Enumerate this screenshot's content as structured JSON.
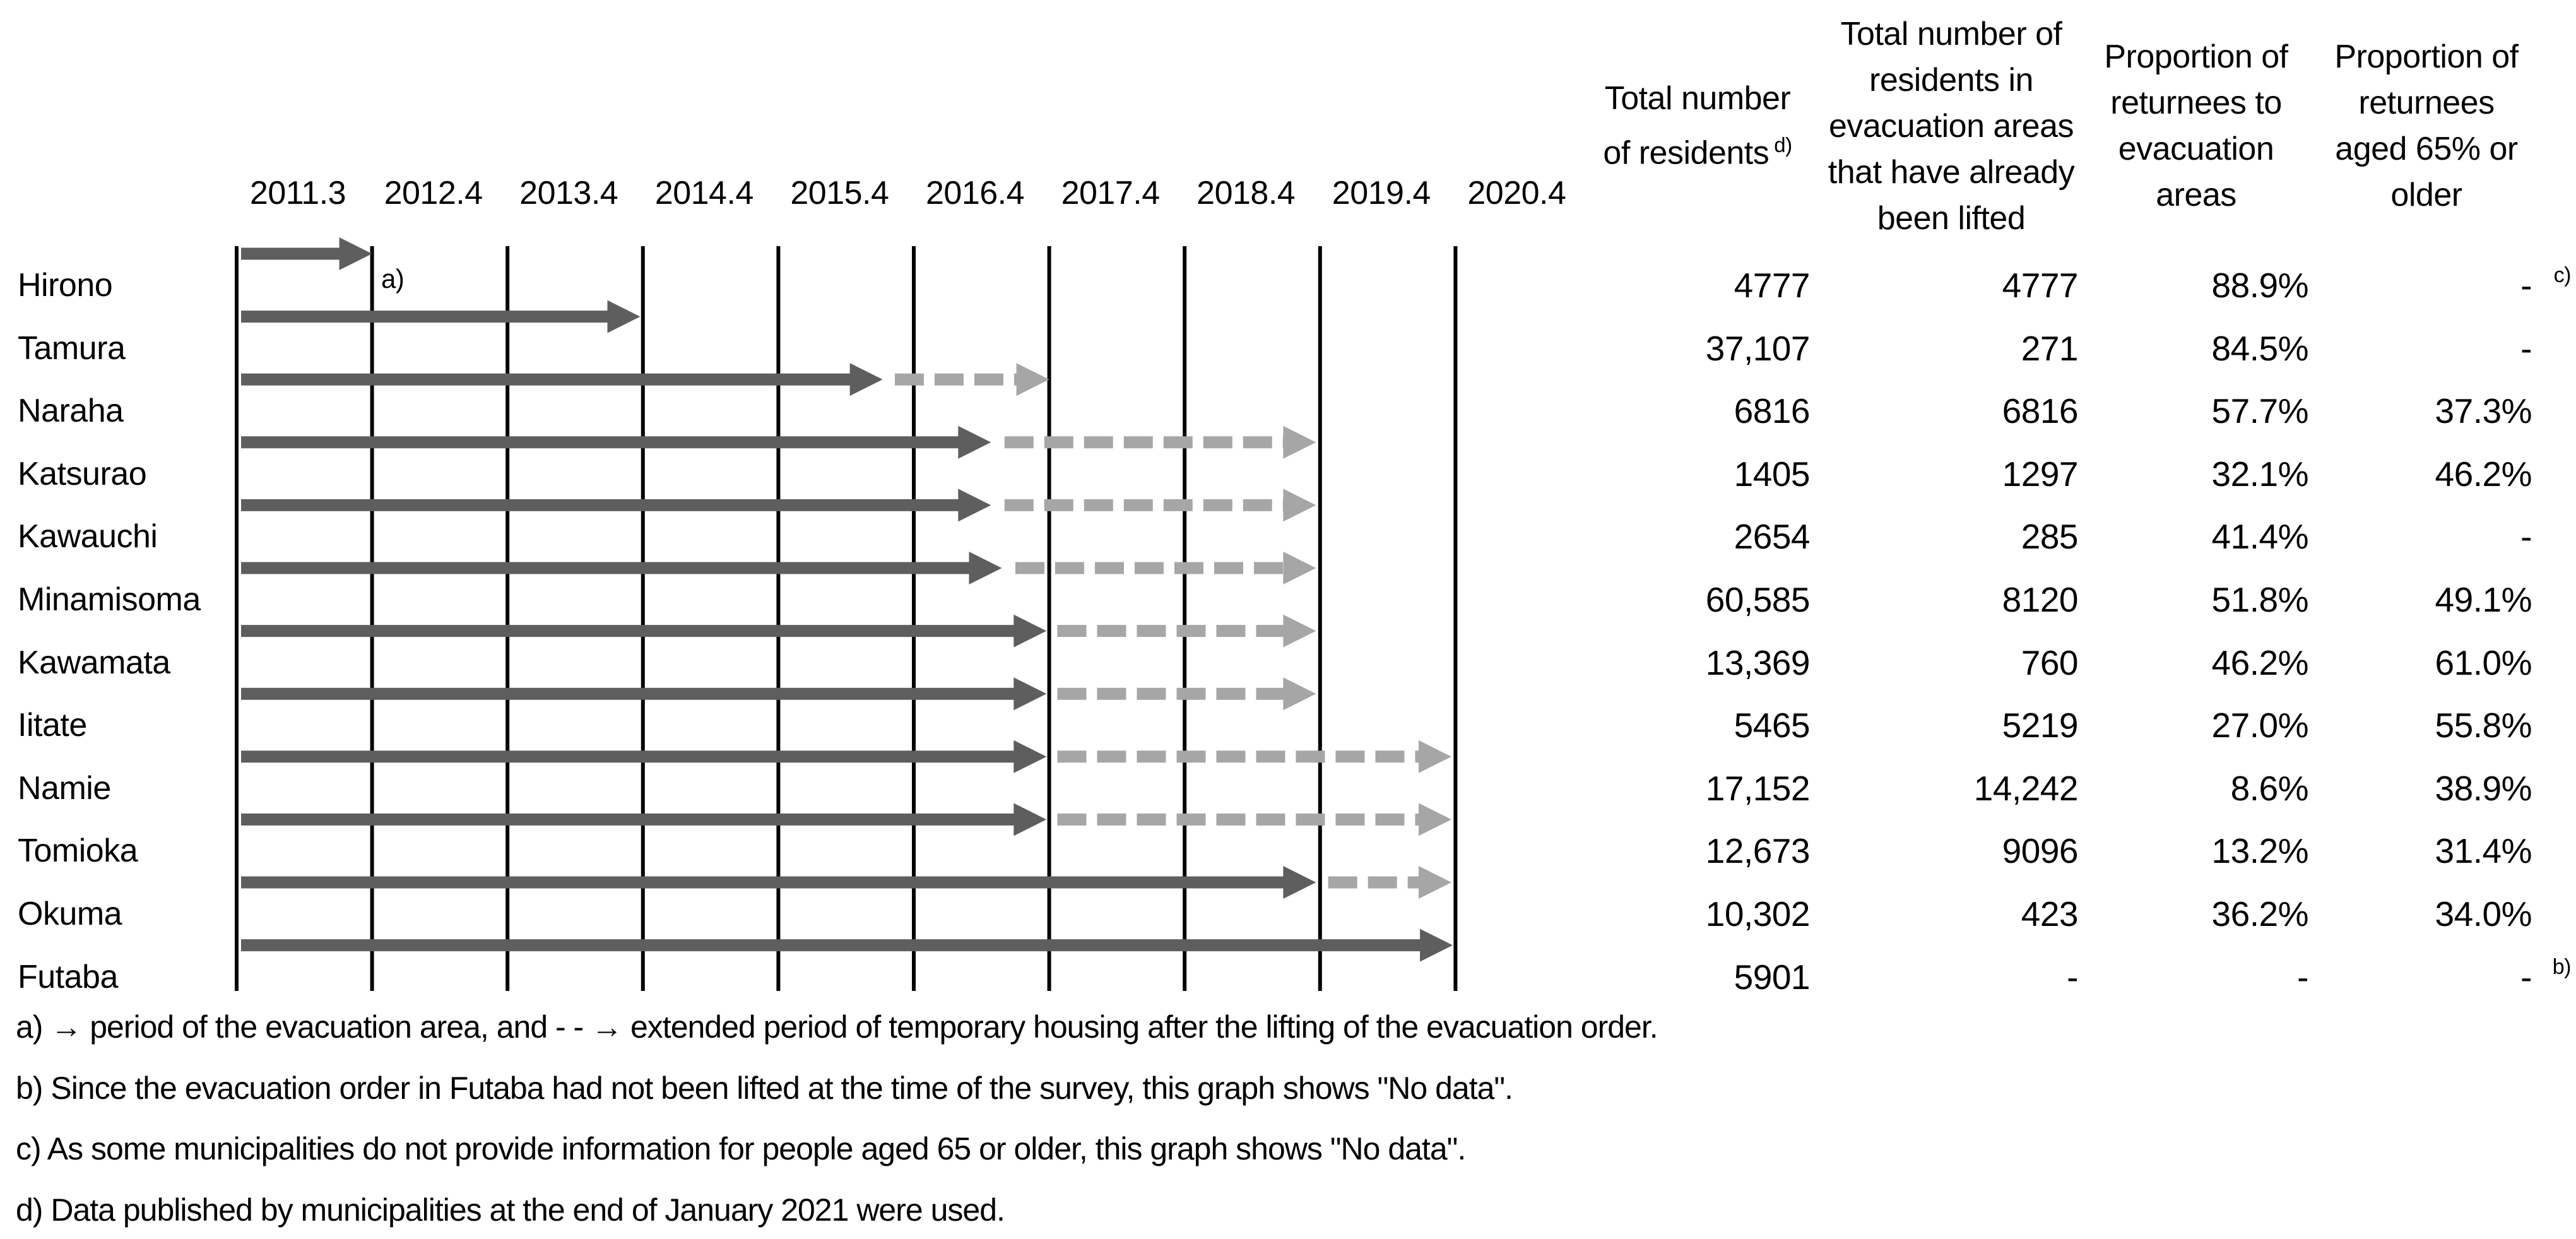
{
  "colors": {
    "solid_arrow": "#5e5e5e",
    "dashed_arrow": "#a6a6a6",
    "gridline": "#000000",
    "text": "#000000",
    "background": "#ffffff"
  },
  "chart_data": {
    "type": "timeline-gantt-with-table",
    "x_tick_labels": [
      "2011.3",
      "2012.4",
      "2013.4",
      "2014.4",
      "2015.4",
      "2016.4",
      "2017.4",
      "2018.4",
      "2019.4",
      "2020.4"
    ],
    "x_axis_note": "arrow positions are in gridline index units, 0 = 2011.3 line, 9 = 2020.4 line",
    "series_meaning": {
      "solid": "period of the evacuation area",
      "dashed": "extended period of temporary housing after the lifting of the evacuation order"
    },
    "annotation": "a)",
    "rows": [
      {
        "name": "Hirono",
        "solid": [
          0,
          1.0
        ],
        "dash": null,
        "values": [
          "4777",
          "4777",
          "88.9%",
          "-"
        ],
        "value_sup": "c)"
      },
      {
        "name": "Tamura",
        "solid": [
          0,
          2.98
        ],
        "dash": null,
        "values": [
          "37,107",
          "271",
          "84.5%",
          "-"
        ]
      },
      {
        "name": "Naraha",
        "solid": [
          0,
          4.77
        ],
        "dash": [
          4.86,
          6.0
        ],
        "values": [
          "6816",
          "6816",
          "57.7%",
          "37.3%"
        ]
      },
      {
        "name": "Katsurao",
        "solid": [
          0,
          5.57
        ],
        "dash": [
          5.67,
          7.97
        ],
        "values": [
          "1405",
          "1297",
          "32.1%",
          "46.2%"
        ]
      },
      {
        "name": "Kawauchi",
        "solid": [
          0,
          5.57
        ],
        "dash": [
          5.67,
          7.97
        ],
        "values": [
          "2654",
          "285",
          "41.4%",
          "-"
        ]
      },
      {
        "name": "Minamisoma",
        "solid": [
          0,
          5.65
        ],
        "dash": [
          5.75,
          7.97
        ],
        "values": [
          "60,585",
          "8120",
          "51.8%",
          "49.1%"
        ]
      },
      {
        "name": "Kawamata",
        "solid": [
          0,
          5.98
        ],
        "dash": [
          6.06,
          7.97
        ],
        "values": [
          "13,369",
          "760",
          "46.2%",
          "61.0%"
        ]
      },
      {
        "name": "Iitate",
        "solid": [
          0,
          5.98
        ],
        "dash": [
          6.06,
          7.97
        ],
        "values": [
          "5465",
          "5219",
          "27.0%",
          "55.8%"
        ]
      },
      {
        "name": "Namie",
        "solid": [
          0,
          5.98
        ],
        "dash": [
          6.06,
          8.97
        ],
        "values": [
          "17,152",
          "14,242",
          "8.6%",
          "38.9%"
        ]
      },
      {
        "name": "Tomioka",
        "solid": [
          0,
          5.98
        ],
        "dash": [
          6.06,
          8.97
        ],
        "values": [
          "12,673",
          "9096",
          "13.2%",
          "31.4%"
        ]
      },
      {
        "name": "Okuma",
        "solid": [
          0,
          7.97
        ],
        "dash": [
          8.06,
          8.97
        ],
        "values": [
          "10,302",
          "423",
          "36.2%",
          "34.0%"
        ]
      },
      {
        "name": "Futaba",
        "solid": [
          0,
          8.98
        ],
        "dash": null,
        "values": [
          "5901",
          "-",
          "-",
          "-"
        ],
        "value_sup": "b)"
      }
    ],
    "columns": [
      {
        "lines": [
          "Total number",
          "of residents"
        ],
        "sup": "d)"
      },
      {
        "lines": [
          "Total number of",
          "residents in",
          "evacuation areas",
          "that have already",
          "been lifted"
        ]
      },
      {
        "lines": [
          "Proportion of",
          "returnees to",
          "evacuation",
          "areas"
        ]
      },
      {
        "lines": [
          "Proportion of",
          "returnees",
          "aged 65% or",
          "older"
        ]
      }
    ],
    "footnotes": [
      "a) → period of the evacuation area, and - - → extended period of temporary housing after the lifting of the evacuation order.",
      "b) Since the evacuation order in Futaba had not been lifted at the time of the survey, this graph shows \"No data\".",
      "c) As some municipalities do not provide information for people aged 65 or older, this graph shows \"No data\".",
      "d) Data published by municipalities at the end of January 2021 were used."
    ]
  }
}
